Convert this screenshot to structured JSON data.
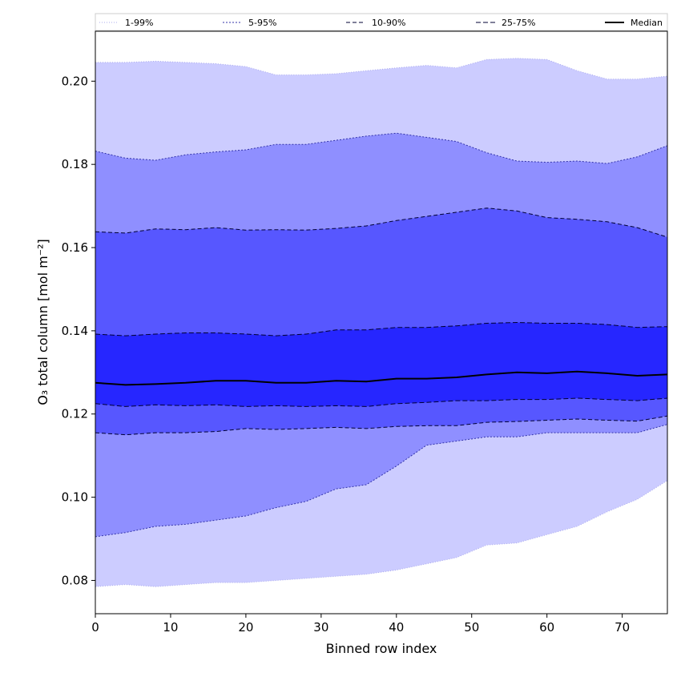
{
  "chart_data": {
    "type": "area",
    "title": "",
    "xlabel": "Binned row index",
    "ylabel": "O₃ total column [mol m⁻²]",
    "xlim": [
      0,
      76
    ],
    "ylim": [
      0.072,
      0.212
    ],
    "xticks": [
      0,
      10,
      20,
      30,
      40,
      50,
      60,
      70
    ],
    "xtick_labels": [
      "0",
      "10",
      "20",
      "30",
      "40",
      "50",
      "60",
      "70"
    ],
    "yticks": [
      0.08,
      0.1,
      0.12,
      0.14,
      0.16,
      0.18,
      0.2
    ],
    "ytick_labels": [
      "0.08",
      "0.10",
      "0.12",
      "0.14",
      "0.16",
      "0.18",
      "0.20"
    ],
    "grid": false,
    "legend_position": "top (horizontal, above plot)",
    "x": [
      0,
      4,
      8,
      12,
      16,
      20,
      24,
      28,
      32,
      36,
      40,
      44,
      48,
      52,
      56,
      60,
      64,
      68,
      72,
      76
    ],
    "bands": [
      {
        "name": "1-99%",
        "fill": "#ccccff",
        "line_color": "#aaaaee",
        "dash": "1,2",
        "lower": [
          0.0785,
          0.079,
          0.0785,
          0.079,
          0.0795,
          0.0795,
          0.08,
          0.0805,
          0.081,
          0.0815,
          0.0825,
          0.084,
          0.0855,
          0.0885,
          0.089,
          0.091,
          0.093,
          0.0965,
          0.0995,
          0.104
        ],
        "upper": [
          0.2045,
          0.2045,
          0.2048,
          0.2045,
          0.2042,
          0.2035,
          0.2015,
          0.2015,
          0.2018,
          0.2025,
          0.2032,
          0.2038,
          0.2032,
          0.2052,
          0.2055,
          0.2052,
          0.2025,
          0.2005,
          0.2005,
          0.2012
        ]
      },
      {
        "name": "5-95%",
        "fill": "#8f8fff",
        "line_color": "#3333aa",
        "dash": "2,2",
        "lower": [
          0.0905,
          0.0915,
          0.093,
          0.0935,
          0.0945,
          0.0955,
          0.0975,
          0.099,
          0.102,
          0.103,
          0.1075,
          0.1125,
          0.1135,
          0.1145,
          0.1145,
          0.1155,
          0.1155,
          0.1155,
          0.1155,
          0.1175
        ],
        "upper": [
          0.1832,
          0.1815,
          0.181,
          0.1823,
          0.183,
          0.1835,
          0.1848,
          0.1848,
          0.1858,
          0.1868,
          0.1875,
          0.1865,
          0.1855,
          0.1828,
          0.1808,
          0.1805,
          0.1808,
          0.1802,
          0.1818,
          0.1845
        ]
      },
      {
        "name": "10-90%",
        "fill": "#5757ff",
        "line_color": "#000033",
        "dash": "5,3",
        "lower": [
          0.1155,
          0.115,
          0.1155,
          0.1155,
          0.1158,
          0.1165,
          0.1163,
          0.1165,
          0.1168,
          0.1165,
          0.117,
          0.1172,
          0.1172,
          0.118,
          0.1182,
          0.1185,
          0.1188,
          0.1185,
          0.1183,
          0.1195
        ],
        "upper": [
          0.1638,
          0.1635,
          0.1645,
          0.1643,
          0.1648,
          0.1642,
          0.1643,
          0.1642,
          0.1646,
          0.1652,
          0.1665,
          0.1675,
          0.1685,
          0.1695,
          0.1688,
          0.1672,
          0.1668,
          0.1662,
          0.1648,
          0.1625
        ]
      },
      {
        "name": "25-75%",
        "fill": "#2626ff",
        "line_color": "#000033",
        "dash": "6,3",
        "lower": [
          0.1225,
          0.1218,
          0.1222,
          0.122,
          0.1222,
          0.1218,
          0.122,
          0.1218,
          0.122,
          0.1218,
          0.1225,
          0.1228,
          0.1232,
          0.1232,
          0.1235,
          0.1235,
          0.1238,
          0.1235,
          0.1232,
          0.1238
        ],
        "upper": [
          0.1392,
          0.1388,
          0.1392,
          0.1395,
          0.1395,
          0.1392,
          0.1388,
          0.1392,
          0.1402,
          0.1402,
          0.1408,
          0.1408,
          0.1412,
          0.1418,
          0.142,
          0.1418,
          0.1418,
          0.1415,
          0.1408,
          0.141
        ]
      }
    ],
    "median": {
      "name": "Median",
      "color": "#000000",
      "values": [
        0.1275,
        0.127,
        0.1272,
        0.1275,
        0.128,
        0.128,
        0.1275,
        0.1275,
        0.128,
        0.1278,
        0.1285,
        0.1285,
        0.1288,
        0.1295,
        0.13,
        0.1298,
        0.1302,
        0.1298,
        0.1292,
        0.1295
      ]
    },
    "legend": [
      "1-99%",
      "5-95%",
      "10-90%",
      "25-75%",
      "Median"
    ]
  }
}
